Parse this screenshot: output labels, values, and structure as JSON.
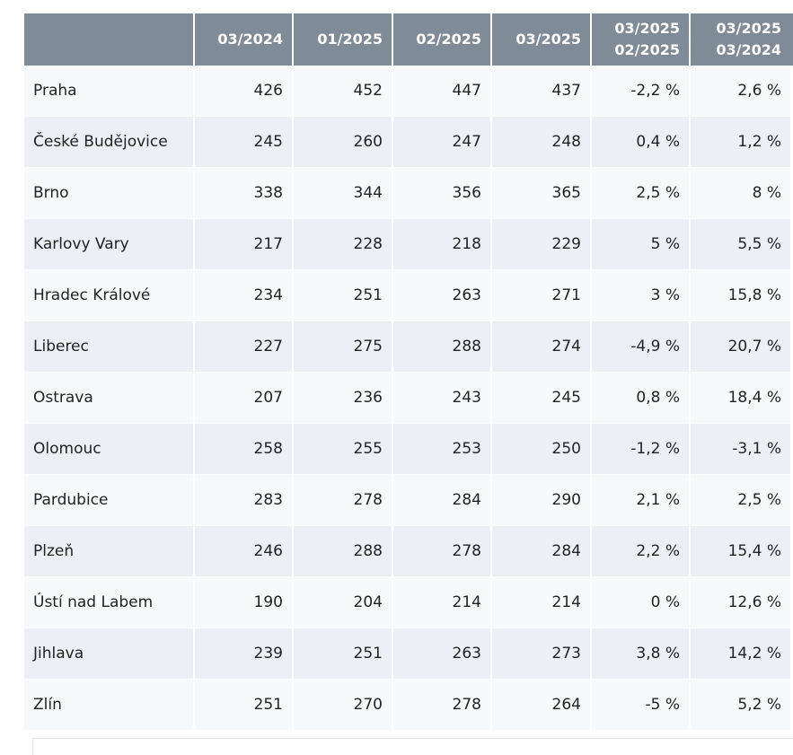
{
  "chart_data": {
    "type": "table",
    "columns": [
      "",
      "03/2024",
      "01/2025",
      "02/2025",
      "03/2025",
      "03/2025\n02/2025",
      "03/2025\n03/2024"
    ],
    "column_lines": [
      [
        ""
      ],
      [
        "03/2024"
      ],
      [
        "01/2025"
      ],
      [
        "02/2025"
      ],
      [
        "03/2025"
      ],
      [
        "03/2025",
        "02/2025"
      ],
      [
        "03/2025",
        "03/2024"
      ]
    ],
    "rows": [
      [
        "Praha",
        "426",
        "452",
        "447",
        "437",
        "-2,2 %",
        "2,6 %"
      ],
      [
        "České Budějovice",
        "245",
        "260",
        "247",
        "248",
        "0,4 %",
        "1,2 %"
      ],
      [
        "Brno",
        "338",
        "344",
        "356",
        "365",
        "2,5 %",
        "8 %"
      ],
      [
        "Karlovy Vary",
        "217",
        "228",
        "218",
        "229",
        "5 %",
        "5,5 %"
      ],
      [
        "Hradec Králové",
        "234",
        "251",
        "263",
        "271",
        "3 %",
        "15,8 %"
      ],
      [
        "Liberec",
        "227",
        "275",
        "288",
        "274",
        "-4,9 %",
        "20,7 %"
      ],
      [
        "Ostrava",
        "207",
        "236",
        "243",
        "245",
        "0,8 %",
        "18,4 %"
      ],
      [
        "Olomouc",
        "258",
        "255",
        "253",
        "250",
        "-1,2 %",
        "-3,1 %"
      ],
      [
        "Pardubice",
        "283",
        "278",
        "284",
        "290",
        "2,1 %",
        "2,5 %"
      ],
      [
        "Plzeň",
        "246",
        "288",
        "278",
        "284",
        "2,2 %",
        "15,4 %"
      ],
      [
        "Ústí nad Labem",
        "190",
        "204",
        "214",
        "214",
        "0 %",
        "12,6 %"
      ],
      [
        "Jihlava",
        "239",
        "251",
        "263",
        "273",
        "3,8 %",
        "14,2 %"
      ],
      [
        "Zlín",
        "251",
        "270",
        "278",
        "264",
        "-5 %",
        "5,2 %"
      ]
    ],
    "colors": {
      "header_bg": "#7f8b96",
      "header_text": "#ffffff",
      "row_light": "#f7fafd",
      "row_dark": "#eceff3"
    }
  }
}
